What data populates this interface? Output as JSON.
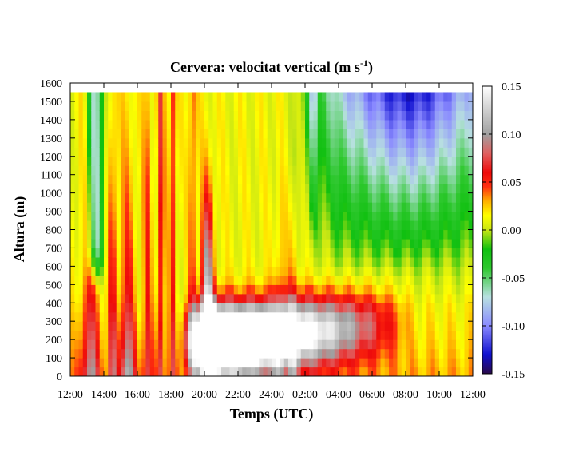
{
  "chart_data": {
    "type": "heatmap",
    "title_main": "Cervera: velocitat vertical (m s",
    "title_sup": "-1",
    "title_end": ")",
    "xlabel": "Temps (UTC)",
    "ylabel": "Altura (m)",
    "x_tick_labels": [
      "12:00",
      "14:00",
      "16:00",
      "18:00",
      "20:00",
      "22:00",
      "24:00",
      "02:00",
      "04:00",
      "06:00",
      "08:00",
      "10:00",
      "12:00"
    ],
    "x_range_hours": [
      0,
      24
    ],
    "y_ticks": [
      0,
      100,
      200,
      300,
      400,
      500,
      600,
      700,
      800,
      900,
      1000,
      1100,
      1200,
      1300,
      1400,
      1500,
      1600
    ],
    "y_range": [
      0,
      1600
    ],
    "data_top": 1550,
    "colorbar": {
      "ticks": [
        "0.15",
        "0.10",
        "0.05",
        "0.00",
        "-0.05",
        "-0.10",
        "-0.15"
      ],
      "range": [
        -0.15,
        0.15
      ],
      "stops": [
        {
          "v": -0.15,
          "color": "#2a0a4a"
        },
        {
          "v": -0.13,
          "color": "#1010d0"
        },
        {
          "v": -0.1,
          "color": "#8a8aff"
        },
        {
          "v": -0.07,
          "color": "#b8e0e0"
        },
        {
          "v": -0.04,
          "color": "#2ec82e"
        },
        {
          "v": -0.02,
          "color": "#10c010"
        },
        {
          "v": 0.0,
          "color": "#c8e614"
        },
        {
          "v": 0.015,
          "color": "#ffff00"
        },
        {
          "v": 0.03,
          "color": "#ffb000"
        },
        {
          "v": 0.045,
          "color": "#ff3010"
        },
        {
          "v": 0.06,
          "color": "#ee0a0a"
        },
        {
          "v": 0.08,
          "color": "#e06060"
        },
        {
          "v": 0.1,
          "color": "#a0a0a0"
        },
        {
          "v": 0.13,
          "color": "#d8d8d8"
        },
        {
          "v": 0.15,
          "color": "#ffffff"
        }
      ]
    }
  }
}
